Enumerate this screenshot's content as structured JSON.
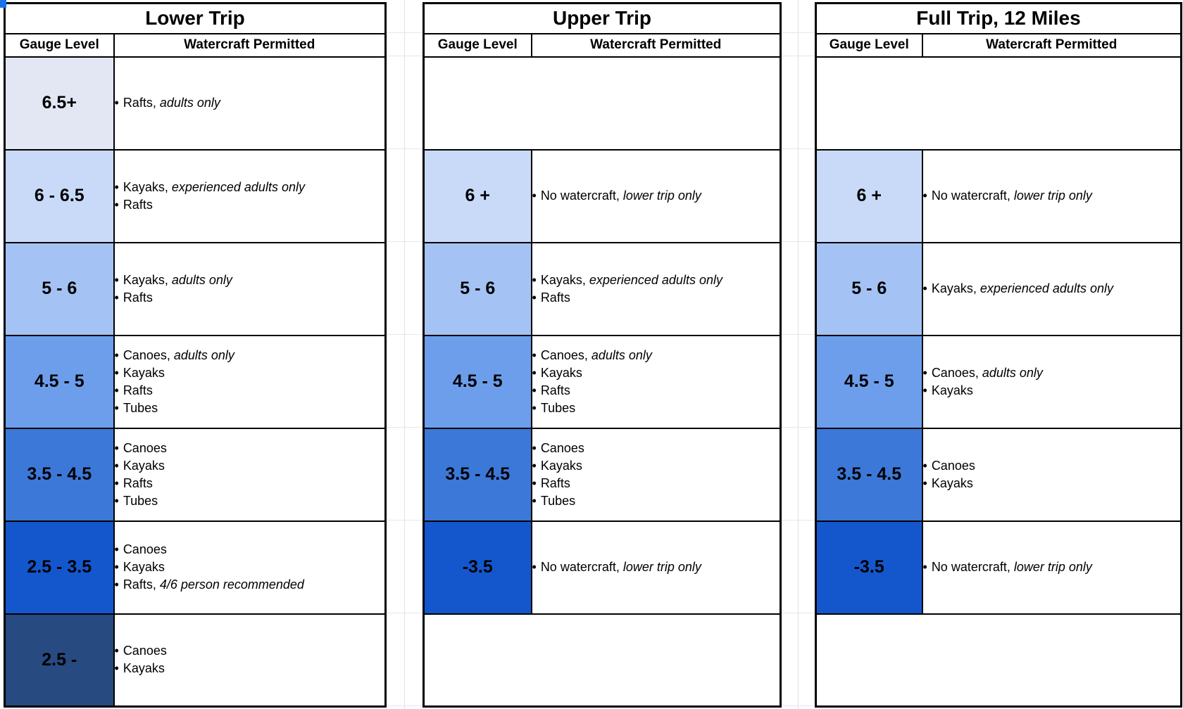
{
  "app": {
    "selection_marker_color": "#1a73e8"
  },
  "bullet": "•",
  "column_headers": {
    "gauge": "Gauge Level",
    "watercraft": "Watercraft Permitted"
  },
  "tables": [
    {
      "title": "Lower Trip",
      "rows": [
        {
          "level": "6.5+",
          "bg": "#e2e7f3",
          "items": [
            {
              "text": "Rafts, ",
              "em": "adults only"
            }
          ]
        },
        {
          "level": "6 - 6.5",
          "bg": "#c9daf8",
          "items": [
            {
              "text": "Kayaks, ",
              "em": "experienced adults only"
            },
            {
              "text": "Rafts",
              "em": ""
            }
          ]
        },
        {
          "level": "5 - 6",
          "bg": "#a4c2f4",
          "items": [
            {
              "text": "Kayaks, ",
              "em": "adults only"
            },
            {
              "text": "Rafts",
              "em": ""
            }
          ]
        },
        {
          "level": "4.5 - 5",
          "bg": "#6d9eeb",
          "items": [
            {
              "text": "Canoes, ",
              "em": "adults only"
            },
            {
              "text": "Kayaks",
              "em": ""
            },
            {
              "text": "Rafts",
              "em": ""
            },
            {
              "text": "Tubes",
              "em": ""
            }
          ]
        },
        {
          "level": "3.5 - 4.5",
          "bg": "#3c78d8",
          "items": [
            {
              "text": "Canoes",
              "em": ""
            },
            {
              "text": "Kayaks",
              "em": ""
            },
            {
              "text": "Rafts",
              "em": ""
            },
            {
              "text": "Tubes",
              "em": ""
            }
          ]
        },
        {
          "level": "2.5 - 3.5",
          "bg": "#1457cd",
          "items": [
            {
              "text": "Canoes",
              "em": ""
            },
            {
              "text": "Kayaks",
              "em": ""
            },
            {
              "text": "Rafts, ",
              "em": "4/6 person recommended"
            }
          ]
        },
        {
          "level": "2.5 -",
          "bg": "#274a80",
          "items": [
            {
              "text": "Canoes",
              "em": ""
            },
            {
              "text": "Kayaks",
              "em": ""
            }
          ]
        }
      ]
    },
    {
      "title": "Upper Trip",
      "rows": [
        {
          "level": null,
          "bg": null,
          "items": []
        },
        {
          "level": "6 +",
          "bg": "#c9daf8",
          "items": [
            {
              "text": "No watercraft, ",
              "em": "lower trip only"
            }
          ]
        },
        {
          "level": "5 - 6",
          "bg": "#a4c2f4",
          "items": [
            {
              "text": "Kayaks, ",
              "em": "experienced adults only"
            },
            {
              "text": "Rafts",
              "em": ""
            }
          ]
        },
        {
          "level": "4.5 - 5",
          "bg": "#6d9eeb",
          "items": [
            {
              "text": "Canoes, ",
              "em": "adults only"
            },
            {
              "text": "Kayaks",
              "em": ""
            },
            {
              "text": "Rafts",
              "em": ""
            },
            {
              "text": "Tubes",
              "em": ""
            }
          ]
        },
        {
          "level": "3.5 - 4.5",
          "bg": "#3c78d8",
          "items": [
            {
              "text": "Canoes",
              "em": ""
            },
            {
              "text": "Kayaks",
              "em": ""
            },
            {
              "text": "Rafts",
              "em": ""
            },
            {
              "text": "Tubes",
              "em": ""
            }
          ]
        },
        {
          "level": "-3.5",
          "bg": "#1457cd",
          "items": [
            {
              "text": "No watercraft, ",
              "em": "lower trip only"
            }
          ]
        },
        {
          "level": null,
          "bg": null,
          "items": []
        }
      ]
    },
    {
      "title": "Full Trip, 12 Miles",
      "rows": [
        {
          "level": null,
          "bg": null,
          "items": []
        },
        {
          "level": "6 +",
          "bg": "#c9daf8",
          "items": [
            {
              "text": "No watercraft, ",
              "em": "lower trip only"
            }
          ]
        },
        {
          "level": "5 - 6",
          "bg": "#a4c2f4",
          "items": [
            {
              "text": "Kayaks, ",
              "em": "experienced adults only"
            }
          ]
        },
        {
          "level": "4.5 - 5",
          "bg": "#6d9eeb",
          "items": [
            {
              "text": "Canoes, ",
              "em": "adults only"
            },
            {
              "text": "Kayaks",
              "em": ""
            }
          ]
        },
        {
          "level": "3.5 - 4.5",
          "bg": "#3c78d8",
          "items": [
            {
              "text": "Canoes",
              "em": ""
            },
            {
              "text": "Kayaks",
              "em": ""
            }
          ]
        },
        {
          "level": "-3.5",
          "bg": "#1457cd",
          "items": [
            {
              "text": "No watercraft, ",
              "em": "lower trip only"
            }
          ]
        },
        {
          "level": null,
          "bg": null,
          "items": []
        }
      ]
    }
  ]
}
